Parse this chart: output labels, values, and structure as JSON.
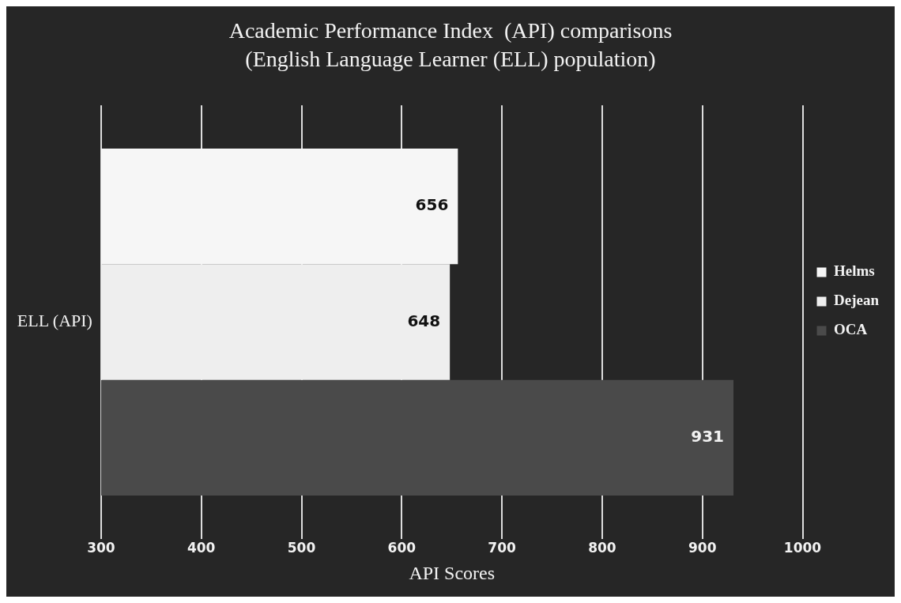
{
  "chart_data": {
    "type": "bar",
    "orientation": "horizontal",
    "title": "Academic Performance Index  (API) comparisons",
    "subtitle": "(English Language Learner (ELL) population)",
    "xlabel": "API Scores",
    "categories": [
      "ELL (API)"
    ],
    "series": [
      {
        "name": "Helms",
        "color": "#f6f6f6",
        "values": [
          656
        ]
      },
      {
        "name": "Dejean",
        "color": "#eeeeee",
        "values": [
          648
        ]
      },
      {
        "name": "OCA",
        "color": "#4a4a4a",
        "values": [
          931
        ]
      }
    ],
    "xlim": [
      300,
      1000
    ],
    "xticks": [
      300,
      400,
      500,
      600,
      700,
      800,
      900,
      1000
    ],
    "grid": "x",
    "legend": "right",
    "data_labels": true
  }
}
